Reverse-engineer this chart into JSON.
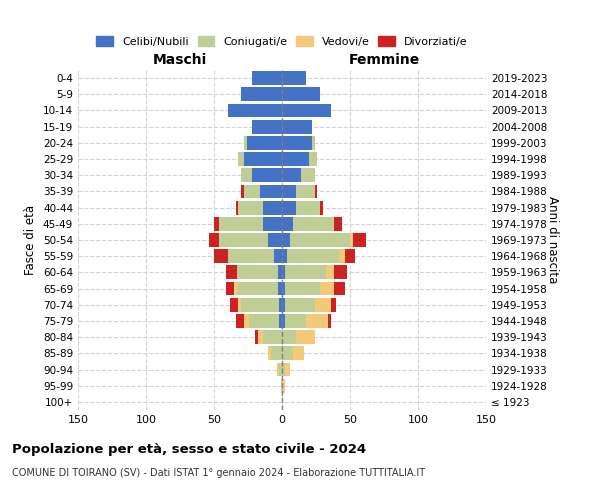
{
  "age_groups": [
    "100+",
    "95-99",
    "90-94",
    "85-89",
    "80-84",
    "75-79",
    "70-74",
    "65-69",
    "60-64",
    "55-59",
    "50-54",
    "45-49",
    "40-44",
    "35-39",
    "30-34",
    "25-29",
    "20-24",
    "15-19",
    "10-14",
    "5-9",
    "0-4"
  ],
  "birth_years": [
    "≤ 1923",
    "1924-1928",
    "1929-1933",
    "1934-1938",
    "1939-1943",
    "1944-1948",
    "1949-1953",
    "1954-1958",
    "1959-1963",
    "1964-1968",
    "1969-1973",
    "1974-1978",
    "1979-1983",
    "1984-1988",
    "1989-1993",
    "1994-1998",
    "1999-2003",
    "2004-2008",
    "2009-2013",
    "2014-2018",
    "2019-2023"
  ],
  "maschi": {
    "celibi": [
      0,
      0,
      0,
      0,
      0,
      2,
      2,
      3,
      3,
      6,
      10,
      14,
      14,
      16,
      22,
      28,
      26,
      22,
      40,
      30,
      22
    ],
    "coniugati": [
      0,
      1,
      2,
      8,
      14,
      22,
      28,
      30,
      30,
      34,
      36,
      32,
      18,
      12,
      8,
      4,
      2,
      0,
      0,
      0,
      0
    ],
    "vedovi": [
      0,
      0,
      2,
      2,
      4,
      4,
      2,
      2,
      0,
      0,
      0,
      0,
      0,
      0,
      0,
      0,
      0,
      0,
      0,
      0,
      0
    ],
    "divorziati": [
      0,
      0,
      0,
      0,
      2,
      6,
      6,
      6,
      8,
      10,
      8,
      4,
      2,
      2,
      0,
      0,
      0,
      0,
      0,
      0,
      0
    ]
  },
  "femmine": {
    "nubili": [
      0,
      0,
      0,
      0,
      0,
      2,
      2,
      2,
      2,
      4,
      6,
      8,
      10,
      10,
      14,
      20,
      22,
      22,
      36,
      28,
      18
    ],
    "coniugate": [
      0,
      0,
      2,
      8,
      10,
      16,
      22,
      26,
      30,
      38,
      44,
      30,
      18,
      14,
      10,
      6,
      2,
      0,
      0,
      0,
      0
    ],
    "vedove": [
      0,
      2,
      4,
      8,
      14,
      16,
      12,
      10,
      6,
      4,
      2,
      0,
      0,
      0,
      0,
      0,
      0,
      0,
      0,
      0,
      0
    ],
    "divorziate": [
      0,
      0,
      0,
      0,
      0,
      2,
      4,
      8,
      10,
      8,
      10,
      6,
      2,
      2,
      0,
      0,
      0,
      0,
      0,
      0,
      0
    ]
  },
  "colors": {
    "celibi": "#4472C4",
    "coniugati": "#BFCD96",
    "vedovi": "#F5C97A",
    "divorziati": "#CC2222"
  },
  "xlim": 150,
  "title": "Popolazione per età, sesso e stato civile - 2024",
  "subtitle": "COMUNE DI TOIRANO (SV) - Dati ISTAT 1° gennaio 2024 - Elaborazione TUTTITALIA.IT",
  "ylabel_left": "Fasce di età",
  "ylabel_right": "Anni di nascita",
  "xlabel_left": "Maschi",
  "xlabel_right": "Femmine"
}
